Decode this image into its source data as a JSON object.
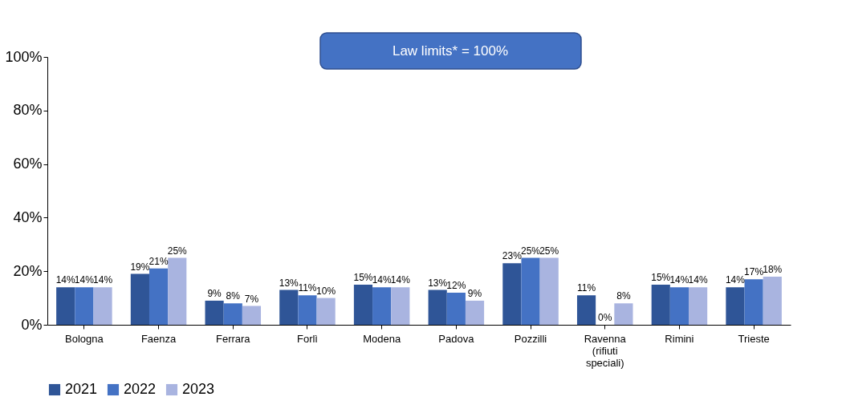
{
  "chart_data": {
    "type": "bar",
    "categories": [
      "Bologna",
      "Faenza",
      "Ferrara",
      "Forlì",
      "Modena",
      "Padova",
      "Pozzilli",
      "Ravenna (rifiuti speciali)",
      "Rimini",
      "Trieste"
    ],
    "series": [
      {
        "name": "2021",
        "color": "#2f5597",
        "values": [
          14,
          19,
          9,
          13,
          15,
          13,
          23,
          11,
          15,
          14
        ],
        "value_labels": [
          "14%",
          "19%",
          "9%",
          "13%",
          "15%",
          "13%",
          "23%",
          "11%",
          "15%",
          "14%"
        ]
      },
      {
        "name": "2022",
        "color": "#4472c4",
        "values": [
          14,
          21,
          8,
          11,
          14,
          12,
          25,
          0,
          14,
          17
        ],
        "value_labels": [
          "14%",
          "21%",
          "8%",
          "11%",
          "14%",
          "12%",
          "25%",
          "0%",
          "14%",
          "17%"
        ]
      },
      {
        "name": "2023",
        "color": "#a9b4e0",
        "values": [
          14,
          25,
          7,
          10,
          14,
          9,
          25,
          8,
          14,
          18
        ],
        "value_labels": [
          "14%",
          "25%",
          "7%",
          "10%",
          "14%",
          "9%",
          "25%",
          "8%",
          "14%",
          "18%"
        ]
      }
    ],
    "ylim": [
      0,
      100
    ],
    "yticks": [
      {
        "value": 0,
        "label": "0%"
      },
      {
        "value": 20,
        "label": "20%"
      },
      {
        "value": 40,
        "label": "40%"
      },
      {
        "value": 60,
        "label": "60%"
      },
      {
        "value": 80,
        "label": "80%"
      },
      {
        "value": 100,
        "label": "100%"
      }
    ],
    "annotations": [
      "Law limits* = 100%"
    ],
    "legend": "bottom",
    "grid": false
  }
}
